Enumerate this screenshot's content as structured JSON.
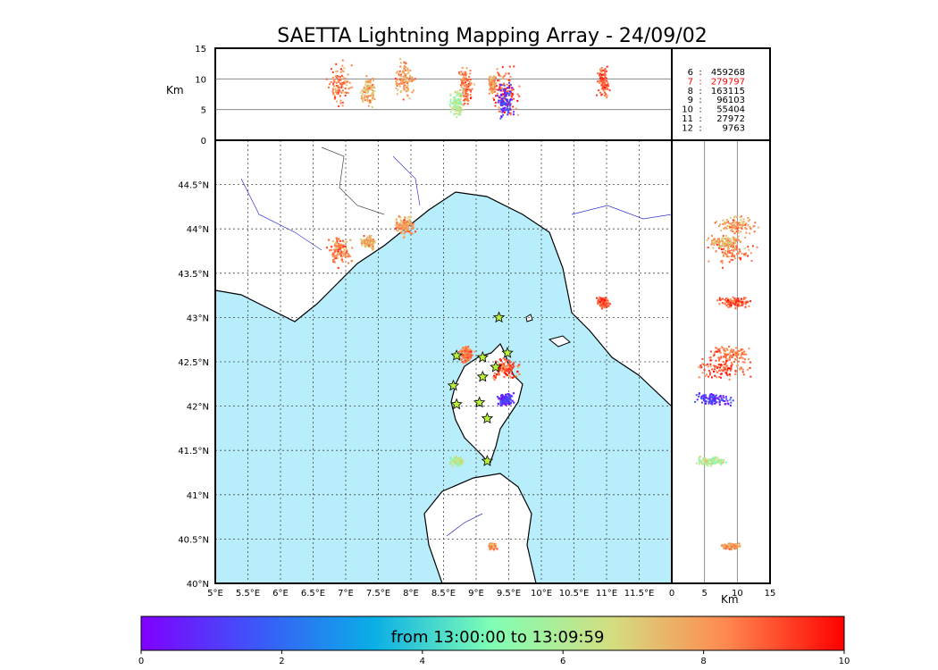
{
  "title": "SAETTA Lightning Mapping Array - 24/09/02",
  "alt_panel": {
    "ylabel": "Km",
    "yticks": [
      "0",
      "5",
      "10",
      "15"
    ]
  },
  "right_panel": {
    "xlabel": "Km",
    "xticks": [
      "0",
      "5",
      "10",
      "15"
    ]
  },
  "station_counts": [
    {
      "stations": "6",
      "count": "459268",
      "color": "#000000"
    },
    {
      "stations": "7",
      "count": "279797",
      "color": "#ff0000"
    },
    {
      "stations": "8",
      "count": "163115",
      "color": "#000000"
    },
    {
      "stations": "9",
      "count": "96103",
      "color": "#000000"
    },
    {
      "stations": "10",
      "count": "55404",
      "color": "#000000"
    },
    {
      "stations": "11",
      "count": "27972",
      "color": "#000000"
    },
    {
      "stations": "12",
      "count": "9763",
      "color": "#000000"
    }
  ],
  "map": {
    "lon_ticks": [
      "5°E",
      "5.5°E",
      "6°E",
      "6.5°E",
      "7°E",
      "7.5°E",
      "8°E",
      "8.5°E",
      "9°E",
      "9.5°E",
      "10°E",
      "10.5°E",
      "11°E",
      "11.5°E"
    ],
    "lat_ticks": [
      "40°N",
      "40.5°N",
      "41°N",
      "41.5°N",
      "42°N",
      "42.5°N",
      "43°N",
      "43.5°N",
      "44°N",
      "44.5°N"
    ],
    "sea_color": "#b8eefc"
  },
  "colorbar": {
    "label": "from 13:00:00 to 13:09:59",
    "ticks": [
      "0",
      "2",
      "4",
      "6",
      "8",
      "10"
    ]
  },
  "chart_data": {
    "type": "scatter",
    "title": "SAETTA Lightning Mapping Array - 24/09/02",
    "lon_range": [
      5,
      12
    ],
    "lat_range": [
      40,
      45
    ],
    "alt_range_km": [
      0,
      15
    ],
    "time_range_min": [
      0,
      10
    ],
    "grid": true,
    "stations": [
      {
        "lon": 9.35,
        "lat": 43.0
      },
      {
        "lon": 8.7,
        "lat": 42.57
      },
      {
        "lon": 9.1,
        "lat": 42.55
      },
      {
        "lon": 9.48,
        "lat": 42.6
      },
      {
        "lon": 9.3,
        "lat": 42.44
      },
      {
        "lon": 9.1,
        "lat": 42.33
      },
      {
        "lon": 8.65,
        "lat": 42.23
      },
      {
        "lon": 8.7,
        "lat": 42.02
      },
      {
        "lon": 9.05,
        "lat": 42.04
      },
      {
        "lon": 9.17,
        "lat": 41.86
      },
      {
        "lon": 9.17,
        "lat": 41.38
      }
    ],
    "clusters": [
      {
        "lon": 6.9,
        "lat": 43.75,
        "dlon": 0.25,
        "dlat": 0.2,
        "alt": 9,
        "dalt": 4.5,
        "time": 8.5
      },
      {
        "lon": 7.35,
        "lat": 43.85,
        "dlon": 0.15,
        "dlat": 0.1,
        "alt": 8,
        "dalt": 3,
        "time": 7.5
      },
      {
        "lon": 7.9,
        "lat": 44.03,
        "dlon": 0.2,
        "dlat": 0.15,
        "alt": 10,
        "dalt": 4,
        "time": 8
      },
      {
        "lon": 10.95,
        "lat": 43.17,
        "dlon": 0.12,
        "dlat": 0.08,
        "alt": 9.5,
        "dalt": 3,
        "time": 9
      },
      {
        "lon": 9.45,
        "lat": 42.42,
        "dlon": 0.35,
        "dlat": 0.15,
        "alt": 8,
        "dalt": 5,
        "time": 9
      },
      {
        "lon": 9.45,
        "lat": 42.08,
        "dlon": 0.15,
        "dlat": 0.1,
        "alt": 6,
        "dalt": 4,
        "time": 1
      },
      {
        "lon": 8.85,
        "lat": 42.58,
        "dlon": 0.15,
        "dlat": 0.12,
        "alt": 9,
        "dalt": 4,
        "time": 8.5
      },
      {
        "lon": 8.7,
        "lat": 41.38,
        "dlon": 0.15,
        "dlat": 0.08,
        "alt": 6,
        "dalt": 3,
        "time": 6
      },
      {
        "lon": 9.25,
        "lat": 40.42,
        "dlon": 0.08,
        "dlat": 0.05,
        "alt": 9,
        "dalt": 2,
        "time": 8
      }
    ]
  }
}
